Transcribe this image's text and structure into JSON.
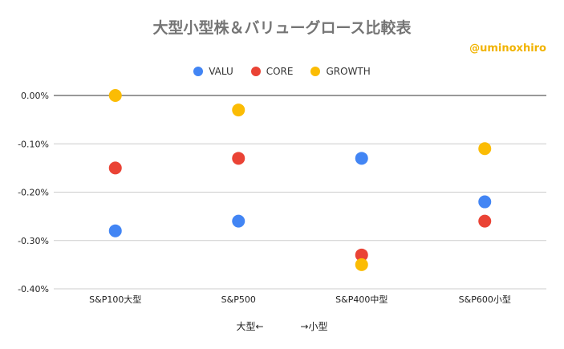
{
  "chart_data": {
    "type": "scatter",
    "title": "大型小型株＆バリューグロース比較表",
    "credit": "@uminoxhiro",
    "categories": [
      "S&P100大型",
      "S&P500",
      "S&P400中型",
      "S&P600小型"
    ],
    "series": [
      {
        "name": "VALU",
        "values": [
          -0.28,
          -0.26,
          -0.13,
          -0.22
        ]
      },
      {
        "name": "CORE",
        "values": [
          -0.15,
          -0.13,
          -0.33,
          -0.26
        ]
      },
      {
        "name": "GROWTH",
        "values": [
          0.0,
          -0.03,
          -0.35,
          -0.11
        ]
      }
    ],
    "colors": {
      "VALU": "#4285f4",
      "CORE": "#ea4335",
      "GROWTH": "#fbbc04"
    },
    "ylim": [
      -0.4,
      0.0
    ],
    "yticks": [
      "0.00%",
      "-0.10%",
      "-0.20%",
      "-0.30%",
      "-0.40%"
    ],
    "ytick_values": [
      0.0,
      -0.1,
      -0.2,
      -0.3,
      -0.4
    ],
    "xlabel_left": "大型←",
    "xlabel_right": "→小型",
    "legend_position": "top",
    "grid": true
  }
}
